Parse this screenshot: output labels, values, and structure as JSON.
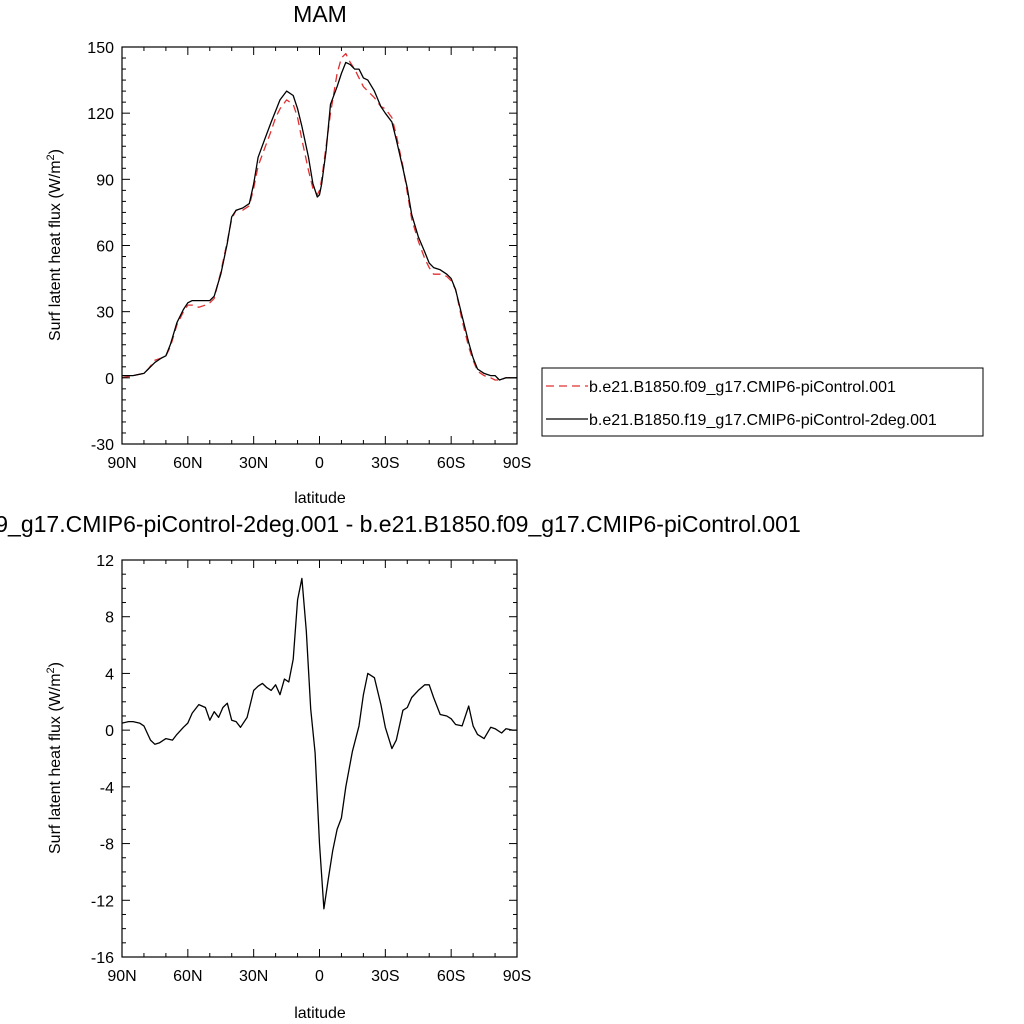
{
  "chart_data": [
    {
      "type": "line",
      "title": "MAM",
      "xlabel": "latitude",
      "ylabel": "Surf latent heat flux (W/m",
      "ylabel_sup": "2",
      "ylabel_tail": ")",
      "xlim": [
        90,
        -90
      ],
      "ylim": [
        -30,
        150
      ],
      "x_ticks": [
        90,
        60,
        30,
        0,
        -30,
        -60,
        -90
      ],
      "x_tick_labels": [
        "90N",
        "60N",
        "30N",
        "0",
        "30S",
        "60S",
        "90S"
      ],
      "y_ticks": [
        -30,
        0,
        30,
        60,
        90,
        120,
        150
      ],
      "y_tick_labels": [
        "-30",
        "0",
        "30",
        "60",
        "90",
        "120",
        "150"
      ],
      "legend_position": "right",
      "series": [
        {
          "name": "b.e21.B1850.f09_g17.CMIP6-piControl.001",
          "color": "#e03030",
          "dash": true,
          "x": [
            90,
            85,
            80,
            78,
            75,
            72,
            70,
            68,
            65,
            62,
            60,
            58,
            55,
            52,
            50,
            48,
            45,
            42,
            40,
            38,
            35,
            32,
            30,
            28,
            25,
            22,
            20,
            18,
            15,
            12,
            10,
            8,
            5,
            3,
            1,
            0,
            -1,
            -3,
            -5,
            -8,
            -10,
            -12,
            -14,
            -16,
            -18,
            -20,
            -22,
            -25,
            -28,
            -30,
            -33,
            -35,
            -38,
            -40,
            -42,
            -45,
            -48,
            -50,
            -52,
            -55,
            -58,
            -60,
            -62,
            -65,
            -68,
            -70,
            -72,
            -75,
            -78,
            -80,
            -82,
            -85,
            -88,
            -90
          ],
          "y": [
            0,
            1,
            2,
            4,
            8,
            9,
            10,
            14,
            24,
            30,
            33,
            33,
            32,
            33,
            34,
            36,
            48,
            62,
            72,
            76,
            76,
            78,
            86,
            96,
            104,
            112,
            118,
            122,
            126,
            124,
            118,
            108,
            94,
            86,
            83,
            85,
            90,
            105,
            120,
            138,
            145,
            147,
            143,
            140,
            136,
            132,
            130,
            127,
            123,
            122,
            118,
            110,
            96,
            84,
            72,
            62,
            54,
            50,
            47,
            47,
            46,
            44,
            40,
            26,
            14,
            8,
            3,
            1,
            0,
            -1,
            -1,
            0,
            0,
            0
          ]
        },
        {
          "name": "b.e21.B1850.f19_g17.CMIP6-piControl-2deg.001",
          "color": "#000000",
          "dash": false,
          "x": [
            90,
            85,
            80,
            78,
            75,
            72,
            70,
            68,
            65,
            62,
            60,
            58,
            55,
            52,
            50,
            48,
            45,
            42,
            40,
            38,
            35,
            32,
            30,
            28,
            25,
            22,
            20,
            18,
            15,
            12,
            10,
            8,
            5,
            3,
            1,
            0,
            -1,
            -3,
            -5,
            -8,
            -10,
            -12,
            -14,
            -16,
            -18,
            -20,
            -22,
            -25,
            -28,
            -30,
            -33,
            -35,
            -38,
            -40,
            -42,
            -45,
            -48,
            -50,
            -52,
            -55,
            -58,
            -60,
            -62,
            -65,
            -68,
            -70,
            -72,
            -75,
            -78,
            -80,
            -82,
            -85,
            -88,
            -90
          ],
          "y": [
            1,
            1,
            2,
            4,
            7,
            9,
            10,
            15,
            25,
            31,
            34,
            35,
            35,
            35,
            35,
            37,
            47,
            61,
            73,
            76,
            77,
            79,
            88,
            100,
            108,
            116,
            121,
            126,
            130,
            128,
            122,
            114,
            100,
            88,
            82,
            83,
            88,
            103,
            124,
            132,
            138,
            143,
            142,
            140,
            140,
            136,
            135,
            130,
            123,
            120,
            116,
            108,
            95,
            86,
            74,
            64,
            57,
            52,
            50,
            49,
            47,
            45,
            40,
            28,
            16,
            9,
            4,
            2,
            1,
            1,
            -1,
            0,
            0,
            0
          ]
        }
      ]
    },
    {
      "type": "line",
      "title": "9_g17.CMIP6-piControl-2deg.001 - b.e21.B1850.f09_g17.CMIP6-piControl.001",
      "xlabel": "latitude",
      "ylabel": "Surf latent heat flux (W/m",
      "ylabel_sup": "2",
      "ylabel_tail": ")",
      "xlim": [
        90,
        -90
      ],
      "ylim": [
        -16,
        12
      ],
      "x_ticks": [
        90,
        60,
        30,
        0,
        -30,
        -60,
        -90
      ],
      "x_tick_labels": [
        "90N",
        "60N",
        "30N",
        "0",
        "30S",
        "60S",
        "90S"
      ],
      "y_ticks": [
        -16,
        -12,
        -8,
        -4,
        0,
        4,
        8,
        12
      ],
      "y_tick_labels": [
        "-16",
        "-12",
        "-8",
        "-4",
        "0",
        "4",
        "8",
        "12"
      ],
      "series": [
        {
          "color": "#000000",
          "dash": false,
          "x": [
            90,
            87,
            85,
            82,
            80,
            77,
            75,
            73,
            70,
            67,
            65,
            62,
            60,
            58,
            55,
            52,
            50,
            48,
            46,
            44,
            42,
            40,
            38,
            36,
            33,
            30,
            28,
            26,
            24,
            22,
            20,
            18,
            16,
            14,
            12,
            10,
            8,
            6,
            4,
            2,
            0,
            -2,
            -4,
            -6,
            -8,
            -10,
            -12,
            -15,
            -18,
            -20,
            -22,
            -25,
            -28,
            -30,
            -33,
            -35,
            -38,
            -40,
            -42,
            -45,
            -48,
            -50,
            -52,
            -55,
            -58,
            -60,
            -62,
            -65,
            -68,
            -70,
            -72,
            -75,
            -78,
            -80,
            -83,
            -85,
            -88,
            -90
          ],
          "y": [
            0.5,
            0.6,
            0.6,
            0.5,
            0.3,
            -0.7,
            -1.0,
            -0.9,
            -0.6,
            -0.7,
            -0.3,
            0.2,
            0.5,
            1.2,
            1.8,
            1.6,
            0.7,
            1.3,
            0.9,
            1.6,
            1.9,
            0.7,
            0.6,
            0.2,
            0.9,
            2.8,
            3.1,
            3.3,
            3.0,
            2.8,
            3.2,
            2.5,
            3.6,
            3.4,
            5.0,
            9.2,
            10.7,
            7.0,
            1.5,
            -1.6,
            -8.0,
            -12.6,
            -10.5,
            -8.5,
            -7.0,
            -6.2,
            -4.0,
            -1.5,
            0.3,
            2.5,
            4.0,
            3.7,
            1.8,
            0.2,
            -1.3,
            -0.7,
            1.4,
            1.6,
            2.3,
            2.8,
            3.2,
            3.2,
            2.3,
            1.1,
            1.0,
            0.8,
            0.4,
            0.3,
            1.7,
            0.3,
            -0.3,
            -0.6,
            0.2,
            0.1,
            -0.2,
            0.1,
            0.0,
            0.0
          ]
        }
      ]
    }
  ]
}
